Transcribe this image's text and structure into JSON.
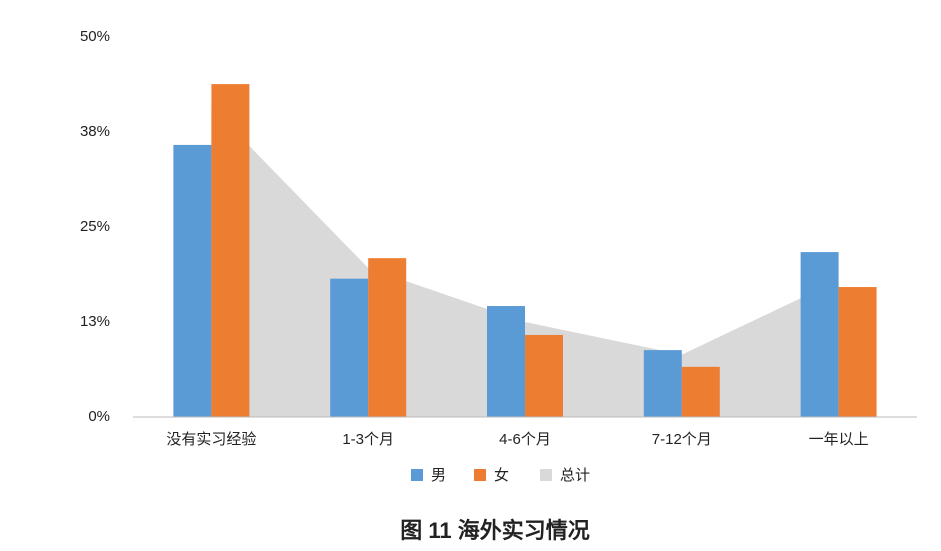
{
  "chart_data": {
    "type": "bar",
    "title": "图 11 海外实习情况",
    "categories": [
      "没有实习经验",
      "1-3个月",
      "4-6个月",
      "7-12个月",
      "一年以上"
    ],
    "series": [
      {
        "name": "男",
        "type": "bar",
        "color": "#5b9bd5",
        "values": [
          35.8,
          18.2,
          14.6,
          8.8,
          21.7
        ]
      },
      {
        "name": "女",
        "type": "bar",
        "color": "#ed7d31",
        "values": [
          43.8,
          20.9,
          10.8,
          6.6,
          17.1
        ]
      },
      {
        "name": "总计",
        "type": "area",
        "color": "#d9d9d9",
        "values": [
          40.8,
          19.6,
          12.5,
          8.2,
          18
        ]
      }
    ],
    "ylim": [
      0,
      50
    ],
    "yticks": [
      {
        "value": 0,
        "label": "0%"
      },
      {
        "value": 12.5,
        "label": "13%"
      },
      {
        "value": 25,
        "label": "25%"
      },
      {
        "value": 37.5,
        "label": "38%"
      },
      {
        "value": 50,
        "label": "50%"
      }
    ],
    "grid": false,
    "legend": "bottom"
  }
}
